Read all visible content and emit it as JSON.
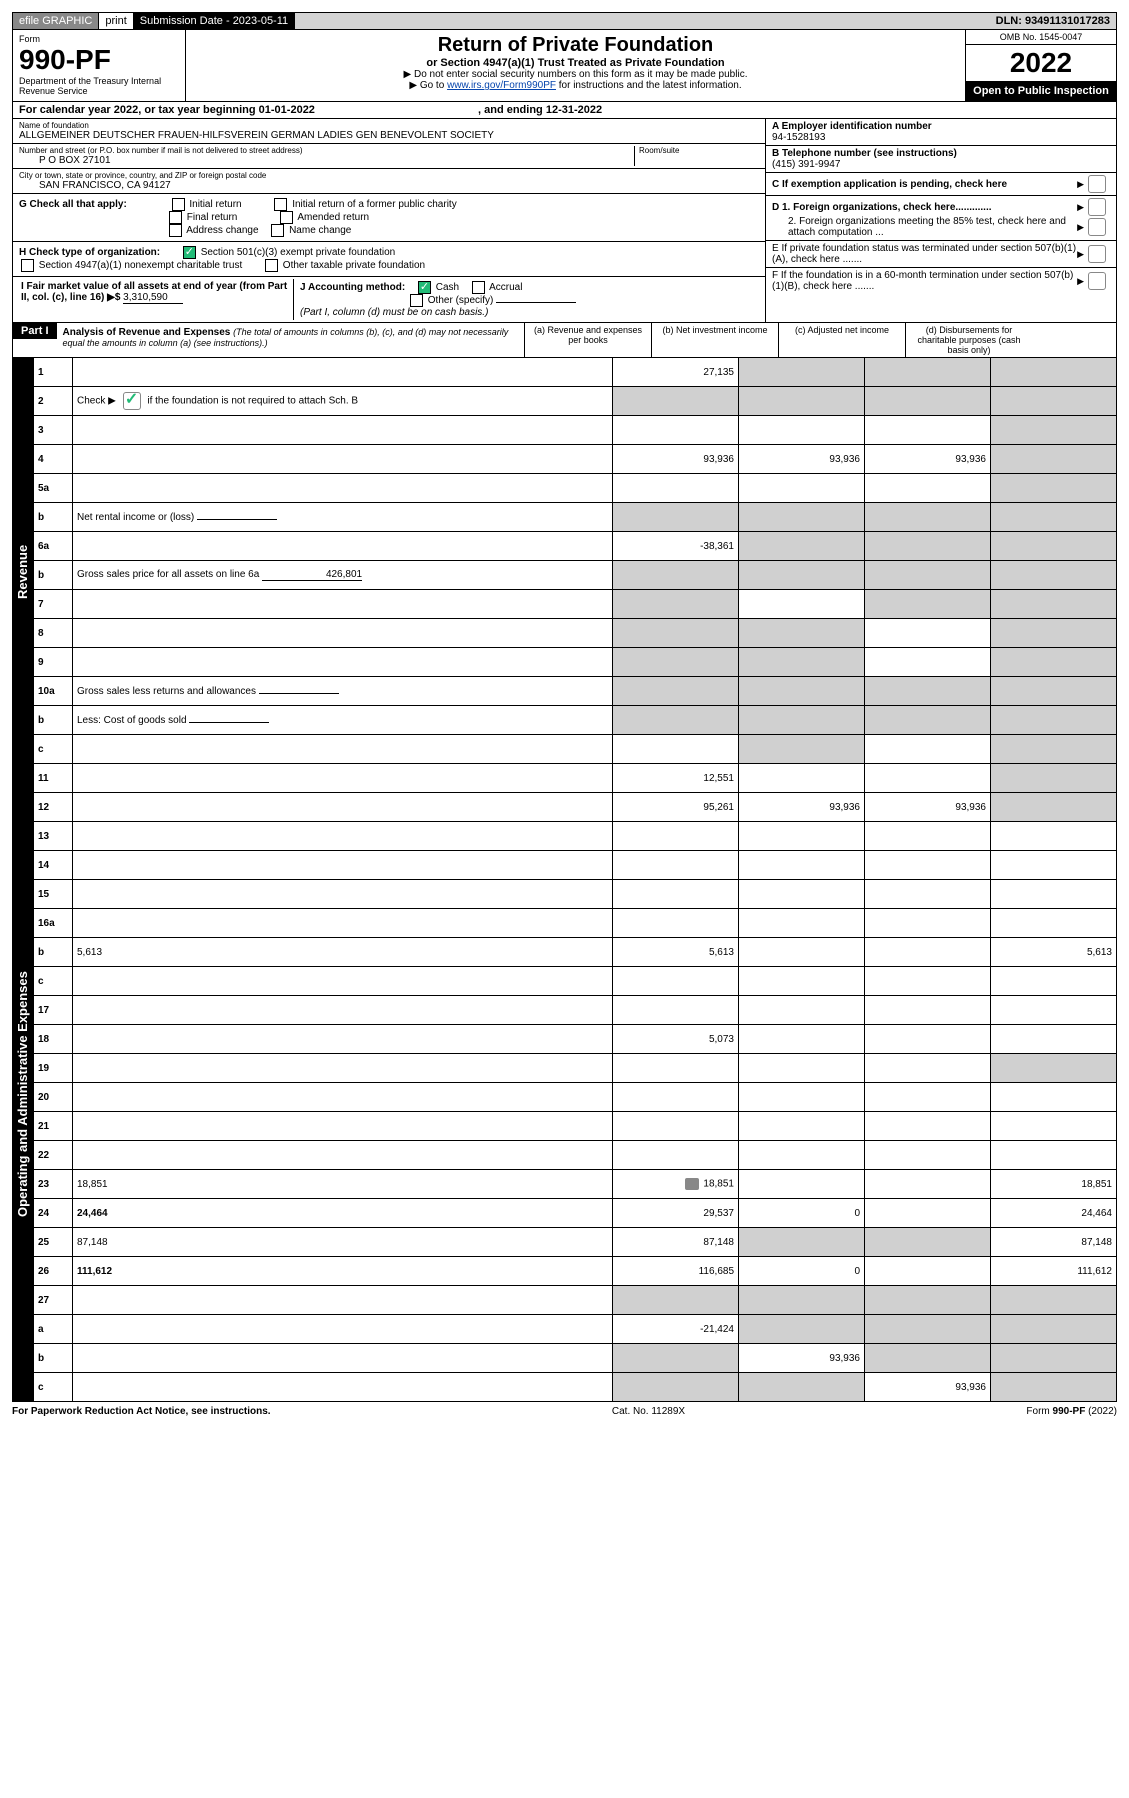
{
  "top": {
    "efile": "efile GRAPHIC",
    "print": "print",
    "submission": "Submission Date - 2023-05-11",
    "dln": "DLN: 93491131017283"
  },
  "header": {
    "form_label": "Form",
    "form_number": "990-PF",
    "dept": "Department of the Treasury\nInternal Revenue Service",
    "title": "Return of Private Foundation",
    "subtitle": "or Section 4947(a)(1) Trust Treated as Private Foundation",
    "instr1": "▶ Do not enter social security numbers on this form as it may be made public.",
    "instr2_pre": "▶ Go to ",
    "instr2_link": "www.irs.gov/Form990PF",
    "instr2_post": " for instructions and the latest information.",
    "omb": "OMB No. 1545-0047",
    "year": "2022",
    "open": "Open to Public Inspection"
  },
  "calendar": {
    "text_pre": "For calendar year 2022, or tax year beginning ",
    "begin": "01-01-2022",
    "text_mid": " , and ending ",
    "end": "12-31-2022"
  },
  "foundation": {
    "name_label": "Name of foundation",
    "name": "ALLGEMEINER DEUTSCHER FRAUEN-HILFSVEREIN GERMAN LADIES GEN BENEVOLENT SOCIETY",
    "addr_label": "Number and street (or P.O. box number if mail is not delivered to street address)",
    "addr": "P O BOX 27101",
    "room_label": "Room/suite",
    "city_label": "City or town, state or province, country, and ZIP or foreign postal code",
    "city": "SAN FRANCISCO, CA  94127",
    "ein_label": "A Employer identification number",
    "ein": "94-1528193",
    "phone_label": "B Telephone number (see instructions)",
    "phone": "(415) 391-9947",
    "c_label": "C If exemption application is pending, check here",
    "d1": "D 1. Foreign organizations, check here.............",
    "d2": "2. Foreign organizations meeting the 85% test, check here and attach computation ...",
    "e": "E   If private foundation status was terminated under section 507(b)(1)(A), check here .......",
    "f": "F   If the foundation is in a 60-month termination under section 507(b)(1)(B), check here .......",
    "g_label": "G Check all that apply:",
    "g_opts": [
      "Initial return",
      "Initial return of a former public charity",
      "Final return",
      "Amended return",
      "Address change",
      "Name change"
    ],
    "h_label": "H Check type of organization:",
    "h1": "Section 501(c)(3) exempt private foundation",
    "h2": "Section 4947(a)(1) nonexempt charitable trust",
    "h3": "Other taxable private foundation",
    "i_label": "I Fair market value of all assets at end of year (from Part II, col. (c), line 16) ▶$",
    "i_value": "3,310,590",
    "j_label": "J Accounting method:",
    "j_cash": "Cash",
    "j_accrual": "Accrual",
    "j_other": "Other (specify)",
    "j_note": "(Part I, column (d) must be on cash basis.)"
  },
  "part1": {
    "label": "Part I",
    "title": "Analysis of Revenue and Expenses",
    "title_note": "(The total of amounts in columns (b), (c), and (d) may not necessarily equal the amounts in column (a) (see instructions).)",
    "col_a": "(a) Revenue and expenses per books",
    "col_b": "(b) Net investment income",
    "col_c": "(c) Adjusted net income",
    "col_d": "(d) Disbursements for charitable purposes (cash basis only)"
  },
  "side_revenue": "Revenue",
  "side_expenses": "Operating and Administrative Expenses",
  "rows": [
    {
      "n": "1",
      "d": "",
      "a": "27,135",
      "b": "",
      "c": "",
      "gb": true,
      "gc": true,
      "gd": true
    },
    {
      "n": "2",
      "d": "Check ▶ [✓] if the foundation is not required to attach Sch. B",
      "dotted": true,
      "no_cells": true
    },
    {
      "n": "3",
      "d": "",
      "a": "",
      "b": "",
      "c": "",
      "gd": true
    },
    {
      "n": "4",
      "d": "",
      "dotted": true,
      "a": "93,936",
      "b": "93,936",
      "c": "93,936",
      "gd": true
    },
    {
      "n": "5a",
      "d": "",
      "dotted": true,
      "a": "",
      "b": "",
      "c": "",
      "gd": true
    },
    {
      "n": "b",
      "d": "Net rental income or (loss)",
      "underline_after": true,
      "no_cells": true,
      "gb": true,
      "gc": true,
      "gd": true
    },
    {
      "n": "6a",
      "d": "",
      "a": "-38,361",
      "b": "",
      "c": "",
      "gb": true,
      "gc": true,
      "gd": true
    },
    {
      "n": "b",
      "d": "Gross sales price for all assets on line 6a",
      "inline_val": "426,801",
      "no_cells": true,
      "gb": true,
      "gc": true,
      "gd": true
    },
    {
      "n": "7",
      "d": "",
      "dotted": true,
      "a": "",
      "b": "",
      "c": "",
      "ga": true,
      "gc": true,
      "gd": true
    },
    {
      "n": "8",
      "d": "",
      "dotted": true,
      "a": "",
      "b": "",
      "c": "",
      "ga": true,
      "gb": true,
      "gd": true
    },
    {
      "n": "9",
      "d": "",
      "dotted": true,
      "a": "",
      "b": "",
      "c": "",
      "ga": true,
      "gb": true,
      "gd": true
    },
    {
      "n": "10a",
      "d": "Gross sales less returns and allowances",
      "underline_after": true,
      "no_cells": true,
      "gb": true,
      "gc": true,
      "gd": true
    },
    {
      "n": "b",
      "d": "Less: Cost of goods sold",
      "dotted": true,
      "underline_after": true,
      "no_cells": true,
      "gb": true,
      "gc": true,
      "gd": true
    },
    {
      "n": "c",
      "d": "",
      "dotted": true,
      "a": "",
      "b": "",
      "c": "",
      "gb": true,
      "gd": true
    },
    {
      "n": "11",
      "d": "",
      "dotted": true,
      "a": "12,551",
      "b": "",
      "c": "",
      "gd": true
    },
    {
      "n": "12",
      "d": "",
      "bold": true,
      "dotted": true,
      "a": "95,261",
      "b": "93,936",
      "c": "93,936",
      "gd": true
    },
    {
      "n": "13",
      "d": "",
      "a": "",
      "b": "",
      "c": ""
    },
    {
      "n": "14",
      "d": "",
      "dotted": true,
      "a": "",
      "b": "",
      "c": ""
    },
    {
      "n": "15",
      "d": "",
      "dotted": true,
      "a": "",
      "b": "",
      "c": ""
    },
    {
      "n": "16a",
      "d": "",
      "dotted": true,
      "a": "",
      "b": "",
      "c": ""
    },
    {
      "n": "b",
      "d": "5,613",
      "dotted": true,
      "a": "5,613",
      "b": "",
      "c": ""
    },
    {
      "n": "c",
      "d": "",
      "dotted": true,
      "a": "",
      "b": "",
      "c": ""
    },
    {
      "n": "17",
      "d": "",
      "dotted": true,
      "a": "",
      "b": "",
      "c": ""
    },
    {
      "n": "18",
      "d": "",
      "dotted": true,
      "a": "5,073",
      "b": "",
      "c": ""
    },
    {
      "n": "19",
      "d": "",
      "dotted": true,
      "a": "",
      "b": "",
      "c": "",
      "gd": true
    },
    {
      "n": "20",
      "d": "",
      "dotted": true,
      "a": "",
      "b": "",
      "c": ""
    },
    {
      "n": "21",
      "d": "",
      "dotted": true,
      "a": "",
      "b": "",
      "c": ""
    },
    {
      "n": "22",
      "d": "",
      "dotted": true,
      "a": "",
      "b": "",
      "c": ""
    },
    {
      "n": "23",
      "d": "18,851",
      "dotted": true,
      "icon": true,
      "a": "18,851",
      "b": "",
      "c": ""
    },
    {
      "n": "24",
      "d": "24,464",
      "bold": true,
      "dotted": true,
      "a": "29,537",
      "b": "0",
      "c": ""
    },
    {
      "n": "25",
      "d": "87,148",
      "dotted": true,
      "a": "87,148",
      "b": "",
      "c": "",
      "gb": true,
      "gc": true
    },
    {
      "n": "26",
      "d": "111,612",
      "bold": true,
      "a": "116,685",
      "b": "0",
      "c": ""
    },
    {
      "n": "27",
      "d": "",
      "a": "",
      "b": "",
      "c": "",
      "ga": true,
      "gb": true,
      "gc": true,
      "gd": true
    },
    {
      "n": "a",
      "d": "",
      "bold": true,
      "a": "-21,424",
      "b": "",
      "c": "",
      "gb": true,
      "gc": true,
      "gd": true
    },
    {
      "n": "b",
      "d": "",
      "bold": true,
      "a": "",
      "b": "93,936",
      "c": "",
      "ga": true,
      "gc": true,
      "gd": true
    },
    {
      "n": "c",
      "d": "",
      "bold": true,
      "dotted": true,
      "a": "",
      "b": "",
      "c": "93,936",
      "ga": true,
      "gb": true,
      "gd": true
    }
  ],
  "footer": {
    "left": "For Paperwork Reduction Act Notice, see instructions.",
    "center": "Cat. No. 11289X",
    "right": "Form 990-PF (2022)"
  }
}
